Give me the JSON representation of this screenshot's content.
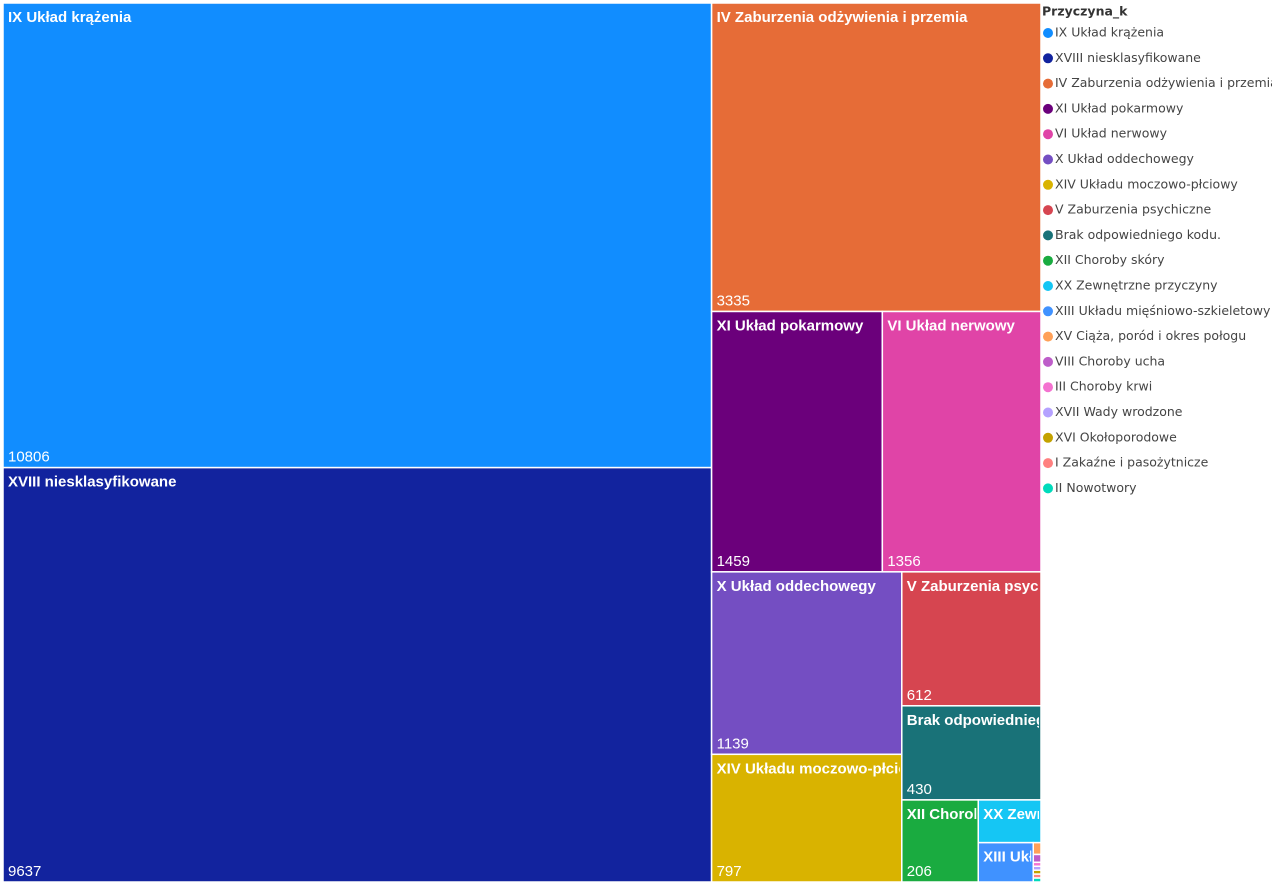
{
  "chart_data": {
    "type": "treemap",
    "legend_title": "Przyczyna_k",
    "categories": [
      "IX Układ krążenia",
      "XVIII niesklasyfikowane",
      "IV Zaburzenia odżywienia i przemia",
      "XI Układ pokarmowy",
      "VI Układ nerwowy",
      "X Układ oddechowegy",
      "XIV Układu moczowo-płciowy",
      "V Zaburzenia psychiczne",
      "Brak odpowiedniego kodu.",
      "XII Choroby skóry",
      "XX Zewnętrzne przyczyny",
      "XIII Układu mięśniowo-szkieletowy",
      "XV Ciąża, poród i okres połogu",
      "VIII Choroby ucha",
      "III Choroby krwi",
      "XVII Wady wrodzone",
      "XVI Okołoporodowe",
      "I Zakaźne i pasożytnicze",
      "II Nowotwory"
    ],
    "values": [
      10806,
      9637,
      3335,
      1459,
      1356,
      1139,
      797,
      612,
      430,
      206,
      88,
      71,
      3,
      2,
      1,
      1,
      1,
      1,
      1
    ],
    "colors": [
      "#118DFF",
      "#12239E",
      "#E66C37",
      "#6B007B",
      "#E044A7",
      "#744EC2",
      "#D9B300",
      "#D64550",
      "#197278",
      "#1AAB40",
      "#15C6F4",
      "#4092FF",
      "#FFA058",
      "#BE5DC9",
      "#F472D0",
      "#B5A1FF",
      "#C4A200",
      "#FF8080",
      "#00DBBC"
    ]
  }
}
